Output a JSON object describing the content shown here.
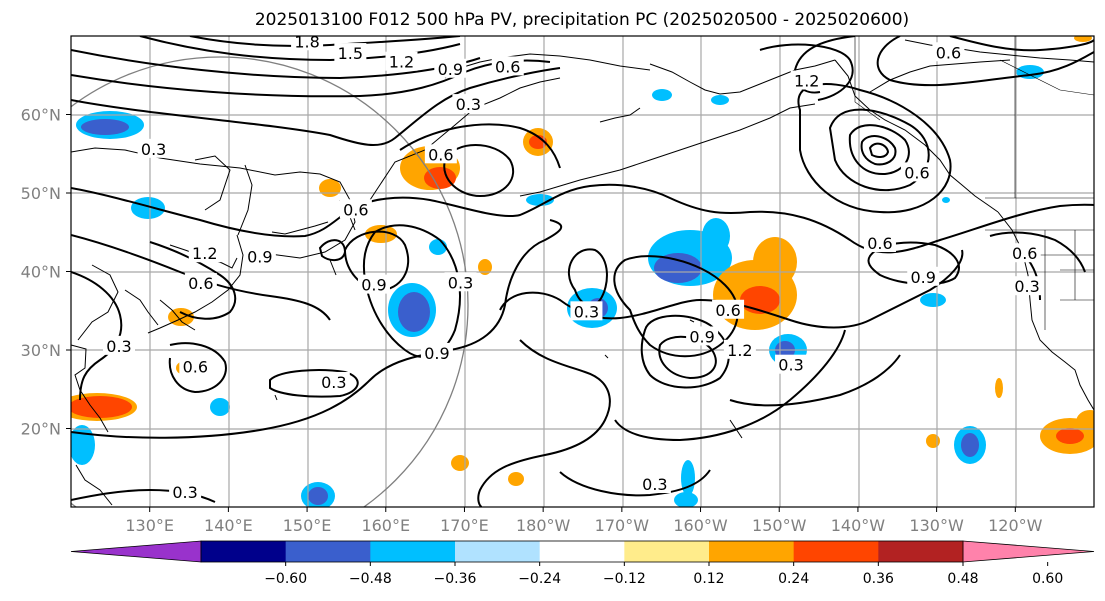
{
  "title": "2025013100 F012 500 hPa PV, precipitation PC (2025020500 - 2025020600)",
  "chart_data": {
    "type": "heatmap",
    "title": "2025013100 F012 500 hPa PV, precipitation PC (2025020500 - 2025020600)",
    "x_ticks": [
      "130°E",
      "140°E",
      "150°E",
      "160°E",
      "170°E",
      "180°W",
      "170°W",
      "160°W",
      "150°W",
      "140°W",
      "130°W",
      "120°W"
    ],
    "x_values": [
      130,
      140,
      150,
      160,
      170,
      180,
      190,
      200,
      210,
      220,
      230,
      240
    ],
    "y_ticks": [
      "20°N",
      "30°N",
      "40°N",
      "50°N",
      "60°N"
    ],
    "y_values": [
      20,
      30,
      40,
      50,
      60
    ],
    "lon_range": [
      120,
      250
    ],
    "lat_range": [
      10,
      70
    ],
    "grid": true,
    "colorbar": {
      "tick_labels": [
        "−0.60",
        "−0.48",
        "−0.36",
        "−0.24",
        "−0.12",
        "0.12",
        "0.24",
        "0.36",
        "0.48",
        "0.60"
      ],
      "colors": [
        "#9932cc",
        "#00008b",
        "#3a5fcd",
        "#00bfff",
        "#b0e2ff",
        "#ffffff",
        "#ffec8b",
        "#ffa500",
        "#ff4500",
        "#b22222",
        "#ff82ab"
      ],
      "extend": "both"
    },
    "contour_labels": [
      {
        "text": "1.8",
        "lon": 150,
        "lat": 69.2
      },
      {
        "text": "1.5",
        "lon": 155.5,
        "lat": 67.7
      },
      {
        "text": "1.2",
        "lon": 162,
        "lat": 66.6
      },
      {
        "text": "0.9",
        "lon": 168.2,
        "lat": 65.7
      },
      {
        "text": "0.6",
        "lon": 175.5,
        "lat": 66
      },
      {
        "text": "0.3",
        "lon": 170.5,
        "lat": 61.2
      },
      {
        "text": "0.6",
        "lon": 231.5,
        "lat": 67.8
      },
      {
        "text": "1.2",
        "lon": 213.5,
        "lat": 64.2
      },
      {
        "text": "0.3",
        "lon": 130.5,
        "lat": 55.5
      },
      {
        "text": "0.6",
        "lon": 167,
        "lat": 54.8
      },
      {
        "text": "0.6",
        "lon": 156.2,
        "lat": 47.8
      },
      {
        "text": "0.9",
        "lon": 144,
        "lat": 41.8
      },
      {
        "text": "1.2",
        "lon": 137,
        "lat": 42.2
      },
      {
        "text": "0.6",
        "lon": 136.5,
        "lat": 38.4
      },
      {
        "text": "0.9",
        "lon": 158.5,
        "lat": 38.2
      },
      {
        "text": "0.3",
        "lon": 169.5,
        "lat": 38.5
      },
      {
        "text": "0.3",
        "lon": 185.5,
        "lat": 34.8
      },
      {
        "text": "0.6",
        "lon": 203.5,
        "lat": 35
      },
      {
        "text": "0.9",
        "lon": 200.2,
        "lat": 31.6
      },
      {
        "text": "1.2",
        "lon": 205,
        "lat": 29.9
      },
      {
        "text": "0.9",
        "lon": 166.5,
        "lat": 29.5
      },
      {
        "text": "0.6",
        "lon": 135.8,
        "lat": 27.8
      },
      {
        "text": "0.3",
        "lon": 126.1,
        "lat": 30.4
      },
      {
        "text": "0.3",
        "lon": 153.4,
        "lat": 25.8
      },
      {
        "text": "0.3",
        "lon": 211.5,
        "lat": 28
      },
      {
        "text": "0.6",
        "lon": 222.8,
        "lat": 43.5
      },
      {
        "text": "0.9",
        "lon": 228.3,
        "lat": 39.2
      },
      {
        "text": "0.6",
        "lon": 241.2,
        "lat": 42.2
      },
      {
        "text": "0.3",
        "lon": 241.5,
        "lat": 38
      },
      {
        "text": "0.6",
        "lon": 227.5,
        "lat": 52.5
      },
      {
        "text": "0.3",
        "lon": 134.5,
        "lat": 11.8
      },
      {
        "text": "0.3",
        "lon": 194.2,
        "lat": 12.8
      }
    ]
  }
}
